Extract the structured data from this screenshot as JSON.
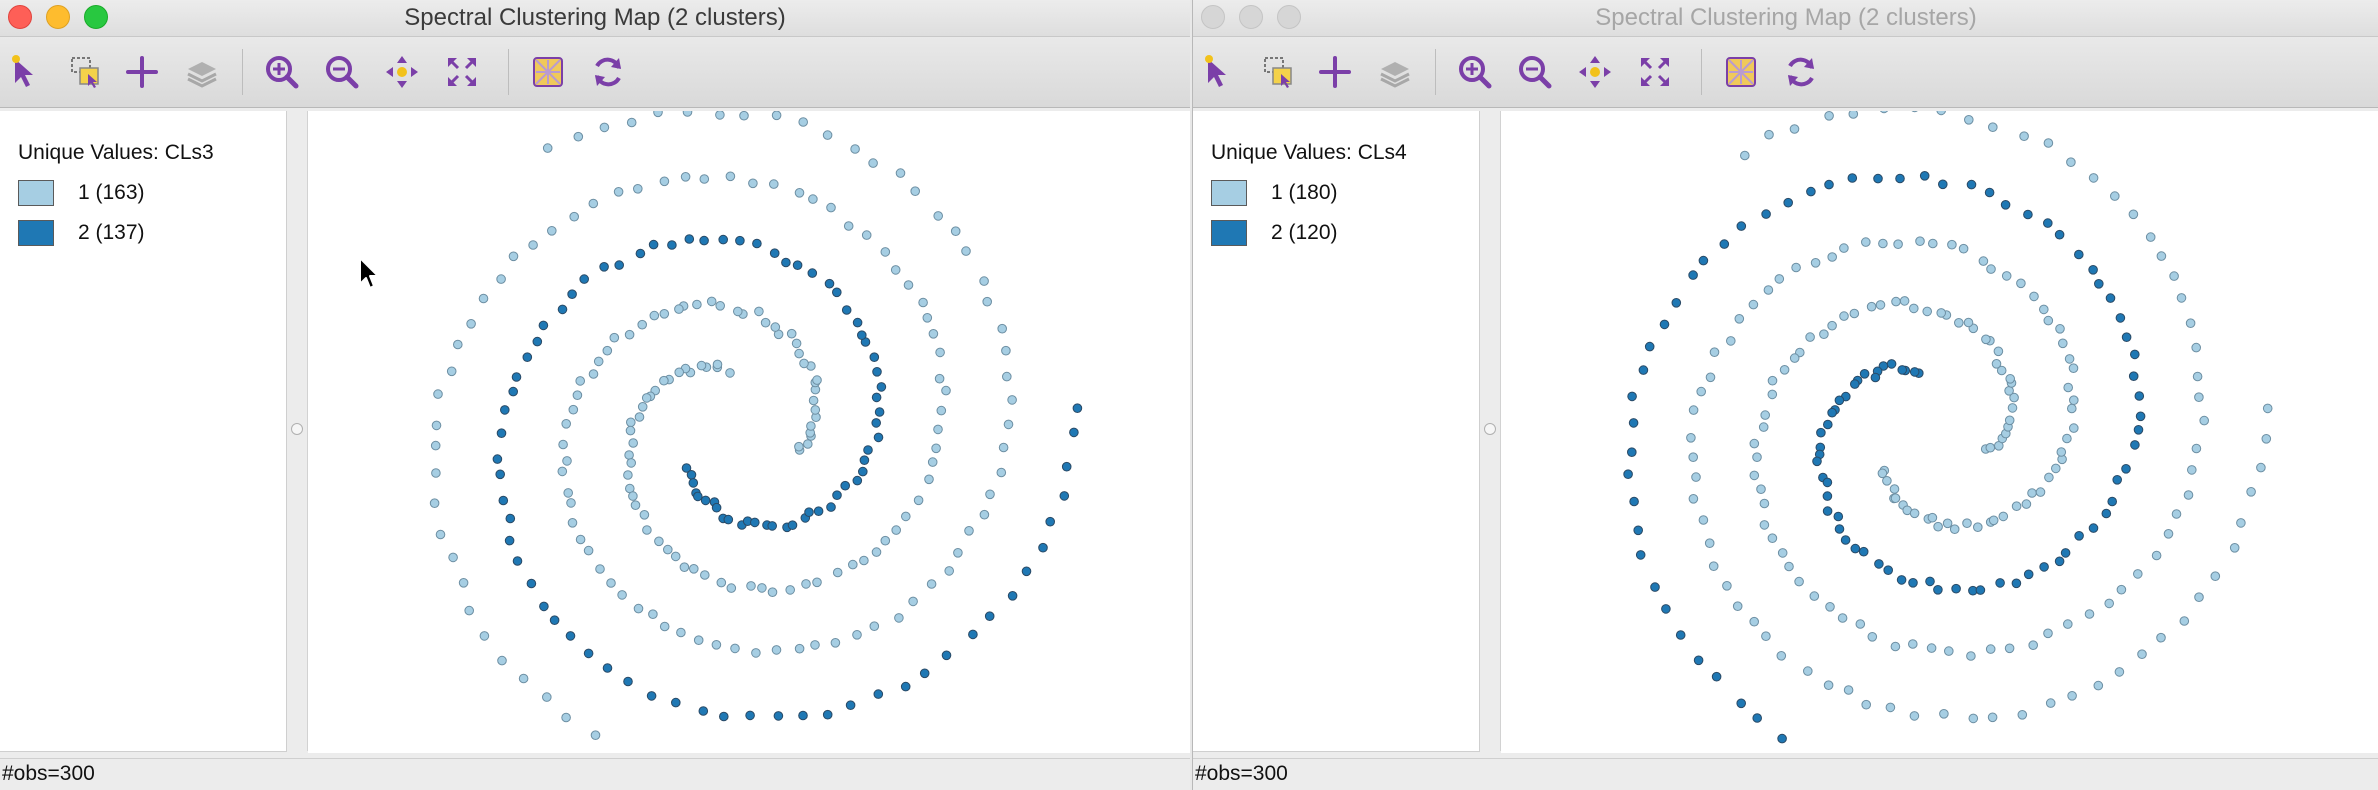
{
  "windows": [
    {
      "title": "Spectral Clustering Map (2 clusters)",
      "state": "active",
      "legend": {
        "title": "Unique Values: CLs3",
        "items": [
          {
            "label": "1 (163)",
            "color": "#a6cee3"
          },
          {
            "label": "2 (137)",
            "color": "#1f78b4"
          }
        ]
      },
      "status": "#obs=300"
    },
    {
      "title": "Spectral Clustering Map (2 clusters)",
      "state": "inactive",
      "legend": {
        "title": "Unique Values: CLs4",
        "items": [
          {
            "label": "1 (180)",
            "color": "#a6cee3"
          },
          {
            "label": "2 (120)",
            "color": "#1f78b4"
          }
        ]
      },
      "status": "#obs=300"
    }
  ],
  "toolbar": [
    {
      "name": "select-tool-icon"
    },
    {
      "name": "select-by-region-icon"
    },
    {
      "name": "add-point-icon"
    },
    {
      "name": "layers-icon"
    },
    {
      "name": "zoom-in-icon"
    },
    {
      "name": "zoom-out-icon"
    },
    {
      "name": "pan-icon"
    },
    {
      "name": "full-extent-icon"
    },
    {
      "name": "basemap-icon"
    },
    {
      "name": "refresh-icon"
    }
  ],
  "colors": {
    "cluster_1": "#a6cee3",
    "cluster_2": "#1f78b4",
    "icon_purple": "#7b3fa8"
  }
}
